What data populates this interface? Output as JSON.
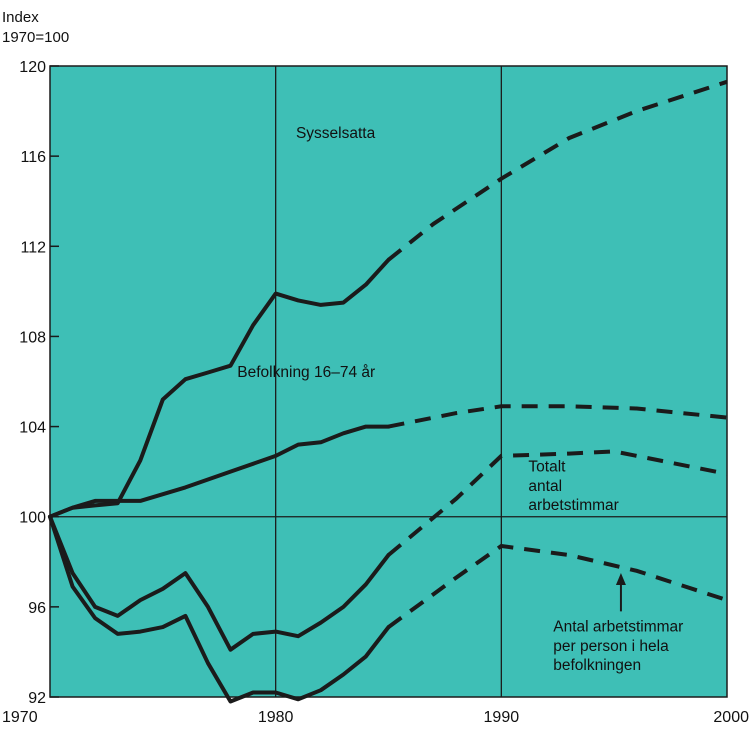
{
  "chart_data": {
    "type": "line",
    "ylabel_lines": [
      "Index",
      "1970=100"
    ],
    "xlim": [
      1970,
      2000
    ],
    "ylim": [
      92,
      120
    ],
    "x_ticks": [
      1970,
      1980,
      1990,
      2000
    ],
    "y_ticks": [
      92,
      96,
      100,
      104,
      108,
      112,
      116,
      120
    ],
    "grid": "vertical lines at 1980 and 1990, horizontal line at 100",
    "background_color": "#3ebfb6",
    "line_color": "#1b1b1b",
    "series": [
      {
        "name": "Sysselsatta",
        "actual": [
          [
            1970,
            100
          ],
          [
            1971,
            100.4
          ],
          [
            1972,
            100.5
          ],
          [
            1973,
            100.6
          ],
          [
            1974,
            102.5
          ],
          [
            1975,
            105.2
          ],
          [
            1976,
            106.1
          ],
          [
            1977,
            106.4
          ],
          [
            1978,
            106.7
          ],
          [
            1979,
            108.5
          ],
          [
            1980,
            109.9
          ],
          [
            1981,
            109.6
          ],
          [
            1982,
            109.4
          ],
          [
            1983,
            109.5
          ],
          [
            1984,
            110.3
          ],
          [
            1985,
            111.4
          ]
        ],
        "forecast": [
          [
            1985,
            111.4
          ],
          [
            1987,
            113
          ],
          [
            1990,
            115
          ],
          [
            1993,
            116.8
          ],
          [
            1996,
            118
          ],
          [
            2000,
            119.3
          ]
        ]
      },
      {
        "name": "Befolkning 16–74 år",
        "actual": [
          [
            1970,
            100
          ],
          [
            1971,
            100.4
          ],
          [
            1972,
            100.7
          ],
          [
            1973,
            100.7
          ],
          [
            1974,
            100.7
          ],
          [
            1976,
            101.3
          ],
          [
            1978,
            102
          ],
          [
            1980,
            102.7
          ],
          [
            1981,
            103.2
          ],
          [
            1982,
            103.3
          ],
          [
            1983,
            103.7
          ],
          [
            1984,
            104
          ],
          [
            1985,
            104
          ]
        ],
        "forecast": [
          [
            1985,
            104
          ],
          [
            1988,
            104.6
          ],
          [
            1990,
            104.9
          ],
          [
            1993,
            104.9
          ],
          [
            1996,
            104.8
          ],
          [
            2000,
            104.4
          ]
        ]
      },
      {
        "name": "Totalt antal arbetstimmar",
        "actual": [
          [
            1970,
            100
          ],
          [
            1971,
            97.5
          ],
          [
            1972,
            96
          ],
          [
            1973,
            95.6
          ],
          [
            1974,
            96.3
          ],
          [
            1975,
            96.8
          ],
          [
            1976,
            97.5
          ],
          [
            1977,
            96
          ],
          [
            1978,
            94.1
          ],
          [
            1979,
            94.8
          ],
          [
            1980,
            94.9
          ],
          [
            1981,
            94.7
          ],
          [
            1982,
            95.3
          ],
          [
            1983,
            96
          ],
          [
            1984,
            97
          ],
          [
            1985,
            98.3
          ]
        ],
        "forecast": [
          [
            1985,
            98.3
          ],
          [
            1988,
            100.8
          ],
          [
            1990,
            102.7
          ],
          [
            1993,
            102.8
          ],
          [
            1995,
            102.9
          ],
          [
            2000,
            101.9
          ]
        ]
      },
      {
        "name": "Antal arbetstimmar per person i hela befolkningen",
        "actual": [
          [
            1970,
            100
          ],
          [
            1971,
            96.9
          ],
          [
            1972,
            95.5
          ],
          [
            1973,
            94.8
          ],
          [
            1974,
            94.9
          ],
          [
            1975,
            95.1
          ],
          [
            1976,
            95.6
          ],
          [
            1977,
            93.5
          ],
          [
            1978,
            91.8
          ],
          [
            1979,
            92.2
          ],
          [
            1980,
            92.2
          ],
          [
            1981,
            91.9
          ],
          [
            1982,
            92.3
          ],
          [
            1983,
            93
          ],
          [
            1984,
            93.8
          ],
          [
            1985,
            95.1
          ]
        ],
        "forecast": [
          [
            1985,
            95.1
          ],
          [
            1988,
            97.3
          ],
          [
            1990,
            98.7
          ],
          [
            1993,
            98.3
          ],
          [
            1996,
            97.6
          ],
          [
            2000,
            96.3
          ]
        ]
      }
    ],
    "annotations": [
      {
        "text": "Sysselsatta",
        "x": 1980.9,
        "y": 116.8
      },
      {
        "text": "Befolkning 16–74 år",
        "x": 1978.3,
        "y": 106.2
      },
      {
        "lines": [
          "Totalt",
          "antal",
          "arbetstimmar"
        ],
        "x": 1991.2,
        "y": 102,
        "line_gap": 0.85
      },
      {
        "lines": [
          "Antal arbetstimmar",
          "per person i hela",
          "befolkningen"
        ],
        "x": 1992.3,
        "y": 94.9,
        "line_gap": 0.85
      }
    ],
    "arrow": {
      "x": 1995.3,
      "y_from": 95.8,
      "y_to": 97.5
    }
  }
}
